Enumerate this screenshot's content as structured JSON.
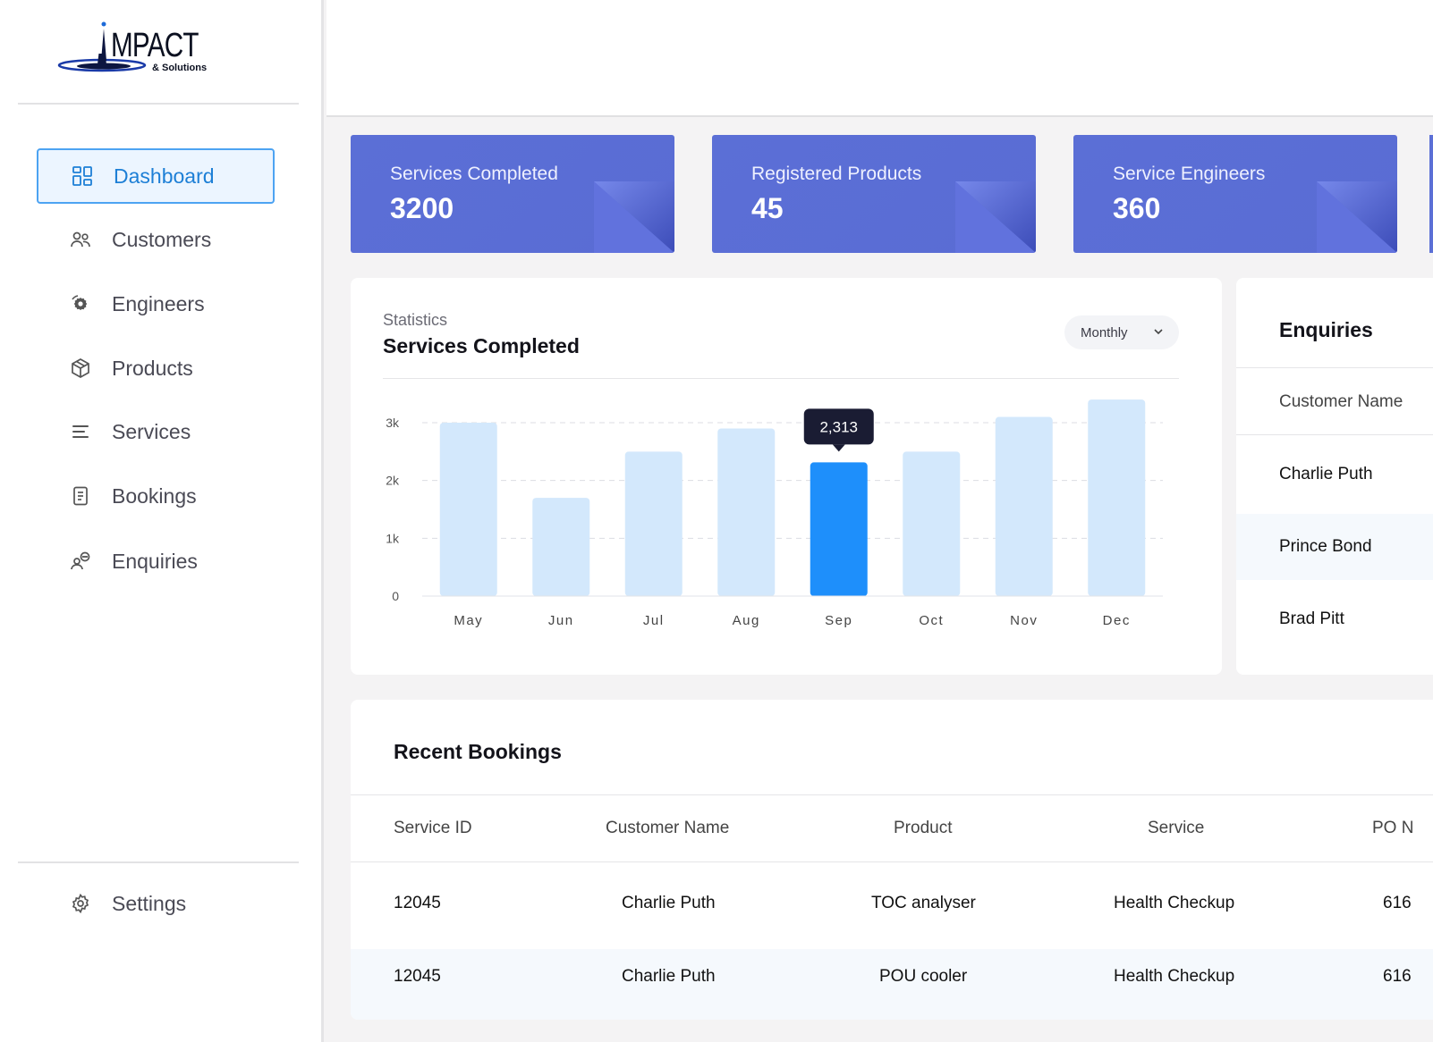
{
  "brand": {
    "logo_main": "MPACT",
    "logo_sub": "& Solutions"
  },
  "sidebar": {
    "items": [
      {
        "label": "Dashboard",
        "icon": "grid-icon",
        "active": true
      },
      {
        "label": "Customers",
        "icon": "users-icon"
      },
      {
        "label": "Engineers",
        "icon": "gear-user-icon"
      },
      {
        "label": "Products",
        "icon": "box-icon"
      },
      {
        "label": "Services",
        "icon": "menu-lines-icon"
      },
      {
        "label": "Bookings",
        "icon": "document-icon"
      },
      {
        "label": "Enquiries",
        "icon": "chat-user-icon"
      }
    ],
    "settings_label": "Settings"
  },
  "stats": [
    {
      "label": "Services Completed",
      "value": "3200"
    },
    {
      "label": "Registered Products",
      "value": "45"
    },
    {
      "label": "Service Engineers",
      "value": "360"
    }
  ],
  "statistics_panel": {
    "kicker": "Statistics",
    "title": "Services Completed",
    "period": "Monthly"
  },
  "chart_data": {
    "type": "bar",
    "categories": [
      "May",
      "Jun",
      "Jul",
      "Aug",
      "Sep",
      "Oct",
      "Nov",
      "Dec"
    ],
    "values": [
      3000,
      1700,
      2500,
      2900,
      2313,
      2500,
      3100,
      3400
    ],
    "highlight_index": 4,
    "tooltip": "2,313",
    "yticks": [
      0,
      1000,
      2000,
      3000
    ],
    "ytick_labels": [
      "0",
      "1k",
      "2k",
      "3k"
    ],
    "ylim": [
      0,
      3000
    ],
    "grid": true,
    "colors": {
      "bar": "#d3e8fc",
      "highlight": "#1e8ffb",
      "tooltip_bg": "#1a1c33"
    }
  },
  "enquiries": {
    "title": "Enquiries",
    "column": "Customer Name",
    "rows": [
      "Charlie Puth",
      "Prince Bond",
      "Brad Pitt"
    ]
  },
  "bookings": {
    "title": "Recent Bookings",
    "columns": [
      "Service ID",
      "Customer Name",
      "Product",
      "Service",
      "PO N"
    ],
    "rows": [
      [
        "12045",
        "Charlie Puth",
        "TOC analyser",
        "Health Checkup",
        "616"
      ],
      [
        "12045",
        "Charlie Puth",
        "POU cooler",
        "Health Checkup",
        "616"
      ]
    ]
  },
  "colors": {
    "accent": "#1d7fd6",
    "card": "#5b6fd6"
  }
}
